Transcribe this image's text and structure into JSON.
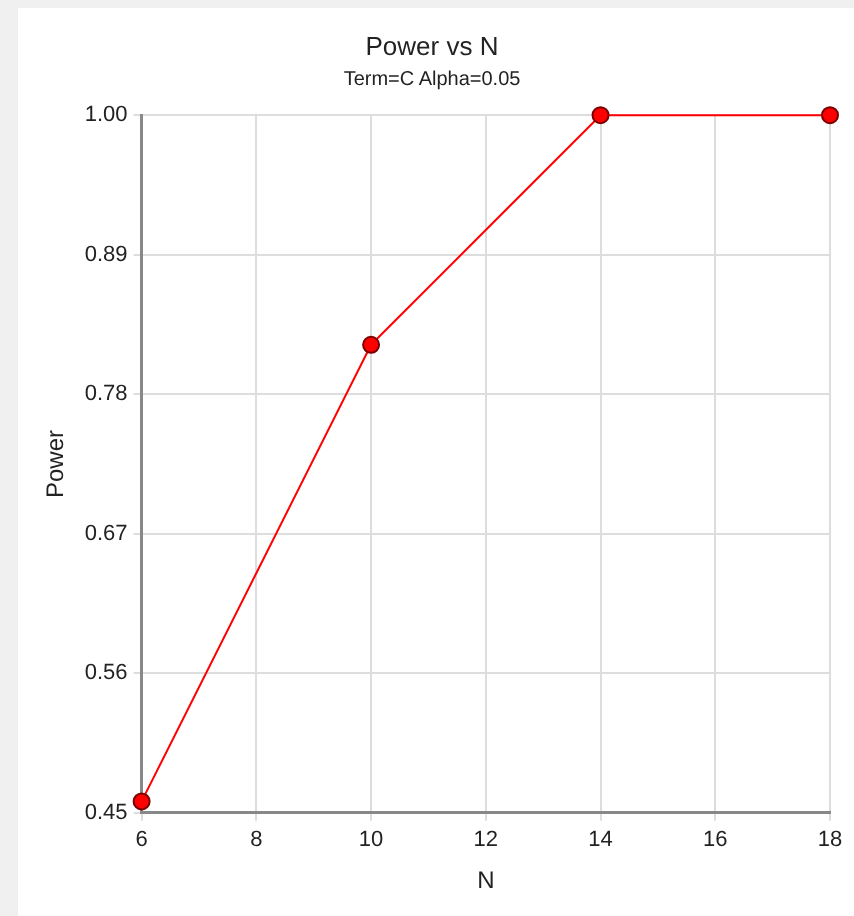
{
  "chart_data": {
    "type": "line",
    "title": "Power vs N",
    "subtitle": "Term=C Alpha=0.05",
    "xlabel": "N",
    "ylabel": "Power",
    "x": [
      6,
      10,
      14,
      18
    ],
    "series": [
      {
        "color": "#ff0000",
        "values": [
          0.459,
          0.819,
          1.0,
          1.0
        ]
      }
    ],
    "xlim": [
      6,
      18
    ],
    "xticks": [
      6,
      8,
      10,
      12,
      14,
      16,
      18
    ],
    "ylim": [
      0.45,
      1.0
    ],
    "yticks": [
      {
        "value": 0.45,
        "label": "0.45"
      },
      {
        "value": 0.56,
        "label": "0.56"
      },
      {
        "value": 0.67,
        "label": "0.67"
      },
      {
        "value": 0.78,
        "label": "0.78"
      },
      {
        "value": 0.89,
        "label": "0.89"
      },
      {
        "value": 1.0,
        "label": "1.00"
      }
    ],
    "grid": true,
    "legend": false,
    "marker": "circle",
    "line_style": "solid"
  }
}
